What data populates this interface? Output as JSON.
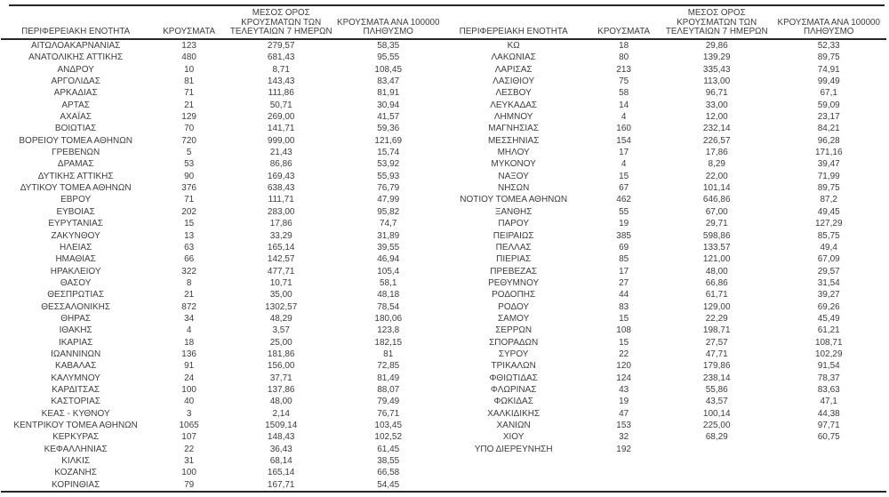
{
  "table": {
    "headers": {
      "region": "ΠΕΡΙΦΕΡΕΙΑΚΗ ΕΝΟΤΗΤΑ",
      "cases": "ΚΡΟΥΣΜΑΤΑ",
      "avg7": "ΜΕΣΟΣ ΟΡΟΣ ΚΡΟΥΣΜΑΤΩΝ ΤΩΝ ΤΕΛΕΥΤΑΙΩΝ 7 ΗΜΕΡΩΝ",
      "per100k": "ΚΡΟΥΣΜΑΤΑ ΑΝΑ 100000 ΠΛΗΘΥΣΜΟ"
    },
    "left_rows": [
      [
        "ΑΙΤΩΛΟΑΚΑΡΝΑΝΙΑΣ",
        "123",
        "279,57",
        "58,35"
      ],
      [
        "ΑΝΑΤΟΛΙΚΗΣ ΑΤΤΙΚΗΣ",
        "480",
        "681,43",
        "95,55"
      ],
      [
        "ΑΝΔΡΟΥ",
        "10",
        "8,71",
        "108,45"
      ],
      [
        "ΑΡΓΟΛΙΔΑΣ",
        "81",
        "143,43",
        "83,47"
      ],
      [
        "ΑΡΚΑΔΙΑΣ",
        "71",
        "111,86",
        "81,91"
      ],
      [
        "ΑΡΤΑΣ",
        "21",
        "50,71",
        "30,94"
      ],
      [
        "ΑΧΑΪΑΣ",
        "129",
        "269,00",
        "41,57"
      ],
      [
        "ΒΟΙΩΤΙΑΣ",
        "70",
        "141,71",
        "59,36"
      ],
      [
        "ΒΟΡΕΙΟΥ ΤΟΜΕΑ ΑΘΗΝΩΝ",
        "720",
        "999,00",
        "121,69"
      ],
      [
        "ΓΡΕΒΕΝΩΝ",
        "5",
        "21,43",
        "15,74"
      ],
      [
        "ΔΡΑΜΑΣ",
        "53",
        "86,86",
        "53,92"
      ],
      [
        "ΔΥΤΙΚΗΣ ΑΤΤΙΚΗΣ",
        "90",
        "169,43",
        "55,93"
      ],
      [
        "ΔΥΤΙΚΟΥ ΤΟΜΕΑ ΑΘΗΝΩΝ",
        "376",
        "638,43",
        "76,79"
      ],
      [
        "ΕΒΡΟΥ",
        "71",
        "111,71",
        "47,99"
      ],
      [
        "ΕΥΒΟΙΑΣ",
        "202",
        "283,00",
        "95,82"
      ],
      [
        "ΕΥΡΥΤΑΝΙΑΣ",
        "15",
        "17,86",
        "74,7"
      ],
      [
        "ΖΑΚΥΝΘΟΥ",
        "13",
        "33,29",
        "31,89"
      ],
      [
        "ΗΛΕΙΑΣ",
        "63",
        "165,14",
        "39,55"
      ],
      [
        "ΗΜΑΘΙΑΣ",
        "66",
        "142,57",
        "46,94"
      ],
      [
        "ΗΡΑΚΛΕΙΟΥ",
        "322",
        "477,71",
        "105,4"
      ],
      [
        "ΘΑΣΟΥ",
        "8",
        "10,71",
        "58,1"
      ],
      [
        "ΘΕΣΠΡΩΤΙΑΣ",
        "21",
        "35,00",
        "48,18"
      ],
      [
        "ΘΕΣΣΑΛΟΝΙΚΗΣ",
        "872",
        "1302,57",
        "78,54"
      ],
      [
        "ΘΗΡΑΣ",
        "34",
        "48,29",
        "180,06"
      ],
      [
        "ΙΘΑΚΗΣ",
        "4",
        "3,57",
        "123,8"
      ],
      [
        "ΙΚΑΡΙΑΣ",
        "18",
        "25,00",
        "182,15"
      ],
      [
        "ΙΩΑΝΝΙΝΩΝ",
        "136",
        "181,86",
        "81"
      ],
      [
        "ΚΑΒΑΛΑΣ",
        "91",
        "156,00",
        "72,85"
      ],
      [
        "ΚΑΛΥΜΝΟΥ",
        "24",
        "37,71",
        "81,49"
      ],
      [
        "ΚΑΡΔΙΤΣΑΣ",
        "100",
        "137,86",
        "88,07"
      ],
      [
        "ΚΑΣΤΟΡΙΑΣ",
        "40",
        "48,00",
        "79,49"
      ],
      [
        "ΚΕΑΣ - ΚΥΘΝΟΥ",
        "3",
        "2,14",
        "76,71"
      ],
      [
        "ΚΕΝΤΡΙΚΟΥ ΤΟΜΕΑ ΑΘΗΝΩΝ",
        "1065",
        "1509,14",
        "103,45"
      ],
      [
        "ΚΕΡΚΥΡΑΣ",
        "107",
        "148,43",
        "102,52"
      ],
      [
        "ΚΕΦΑΛΛΗΝΙΑΣ",
        "22",
        "36,43",
        "61,45"
      ],
      [
        "ΚΙΛΚΙΣ",
        "31",
        "68,14",
        "38,55"
      ],
      [
        "ΚΟΖΑΝΗΣ",
        "100",
        "165,14",
        "66,58"
      ],
      [
        "ΚΟΡΙΝΘΙΑΣ",
        "79",
        "167,71",
        "54,45"
      ]
    ],
    "right_rows": [
      [
        "ΚΩ",
        "18",
        "29,86",
        "52,33"
      ],
      [
        "ΛΑΚΩΝΙΑΣ",
        "80",
        "139,29",
        "89,75"
      ],
      [
        "ΛΑΡΙΣΑΣ",
        "213",
        "335,43",
        "74,91"
      ],
      [
        "ΛΑΣΙΘΙΟΥ",
        "75",
        "113,00",
        "99,49"
      ],
      [
        "ΛΕΣΒΟΥ",
        "58",
        "96,71",
        "67,1"
      ],
      [
        "ΛΕΥΚΑΔΑΣ",
        "14",
        "33,00",
        "59,09"
      ],
      [
        "ΛΗΜΝΟΥ",
        "4",
        "12,00",
        "23,17"
      ],
      [
        "ΜΑΓΝΗΣΙΑΣ",
        "160",
        "232,14",
        "84,21"
      ],
      [
        "ΜΕΣΣΗΝΙΑΣ",
        "154",
        "226,57",
        "96,28"
      ],
      [
        "ΜΗΛΟΥ",
        "17",
        "17,86",
        "171,16"
      ],
      [
        "ΜΥΚΟΝΟΥ",
        "4",
        "8,29",
        "39,47"
      ],
      [
        "ΝΑΞΟΥ",
        "15",
        "22,00",
        "71,99"
      ],
      [
        "ΝΗΣΩΝ",
        "67",
        "101,14",
        "89,75"
      ],
      [
        "ΝΟΤΙΟΥ ΤΟΜΕΑ ΑΘΗΝΩΝ",
        "462",
        "646,86",
        "87,2"
      ],
      [
        "ΞΑΝΘΗΣ",
        "55",
        "67,00",
        "49,45"
      ],
      [
        "ΠΑΡΟΥ",
        "19",
        "29,71",
        "127,29"
      ],
      [
        "ΠΕΙΡΑΙΩΣ",
        "385",
        "598,86",
        "85,75"
      ],
      [
        "ΠΕΛΛΑΣ",
        "69",
        "133,57",
        "49,4"
      ],
      [
        "ΠΙΕΡΙΑΣ",
        "85",
        "121,00",
        "67,09"
      ],
      [
        "ΠΡΕΒΕΖΑΣ",
        "17",
        "48,00",
        "29,57"
      ],
      [
        "ΡΕΘΥΜΝΟΥ",
        "27",
        "66,86",
        "31,54"
      ],
      [
        "ΡΟΔΟΠΗΣ",
        "44",
        "61,71",
        "39,27"
      ],
      [
        "ΡΟΔΟΥ",
        "83",
        "129,00",
        "69,26"
      ],
      [
        "ΣΑΜΟΥ",
        "15",
        "22,29",
        "45,49"
      ],
      [
        "ΣΕΡΡΩΝ",
        "108",
        "198,71",
        "61,21"
      ],
      [
        "ΣΠΟΡΑΔΩΝ",
        "15",
        "27,57",
        "108,71"
      ],
      [
        "ΣΥΡΟΥ",
        "22",
        "47,71",
        "102,29"
      ],
      [
        "ΤΡΙΚΑΛΩΝ",
        "120",
        "179,86",
        "91,54"
      ],
      [
        "ΦΘΙΩΤΙΔΑΣ",
        "124",
        "238,14",
        "78,37"
      ],
      [
        "ΦΛΩΡΙΝΑΣ",
        "43",
        "55,86",
        "83,63"
      ],
      [
        "ΦΩΚΙΔΑΣ",
        "19",
        "43,57",
        "47,1"
      ],
      [
        "ΧΑΛΚΙΔΙΚΗΣ",
        "47",
        "100,14",
        "44,38"
      ],
      [
        "ΧΑΝΙΩΝ",
        "153",
        "225,00",
        "97,71"
      ],
      [
        "ΧΙΟΥ",
        "32",
        "68,29",
        "60,75"
      ],
      [
        "ΥΠΟ ΔΙΕΡΕΥΝΗΣΗ",
        "192",
        "",
        ""
      ]
    ],
    "colors": {
      "text": "#3d3d3d",
      "rule": "#262626",
      "background": "#ffffff"
    }
  }
}
